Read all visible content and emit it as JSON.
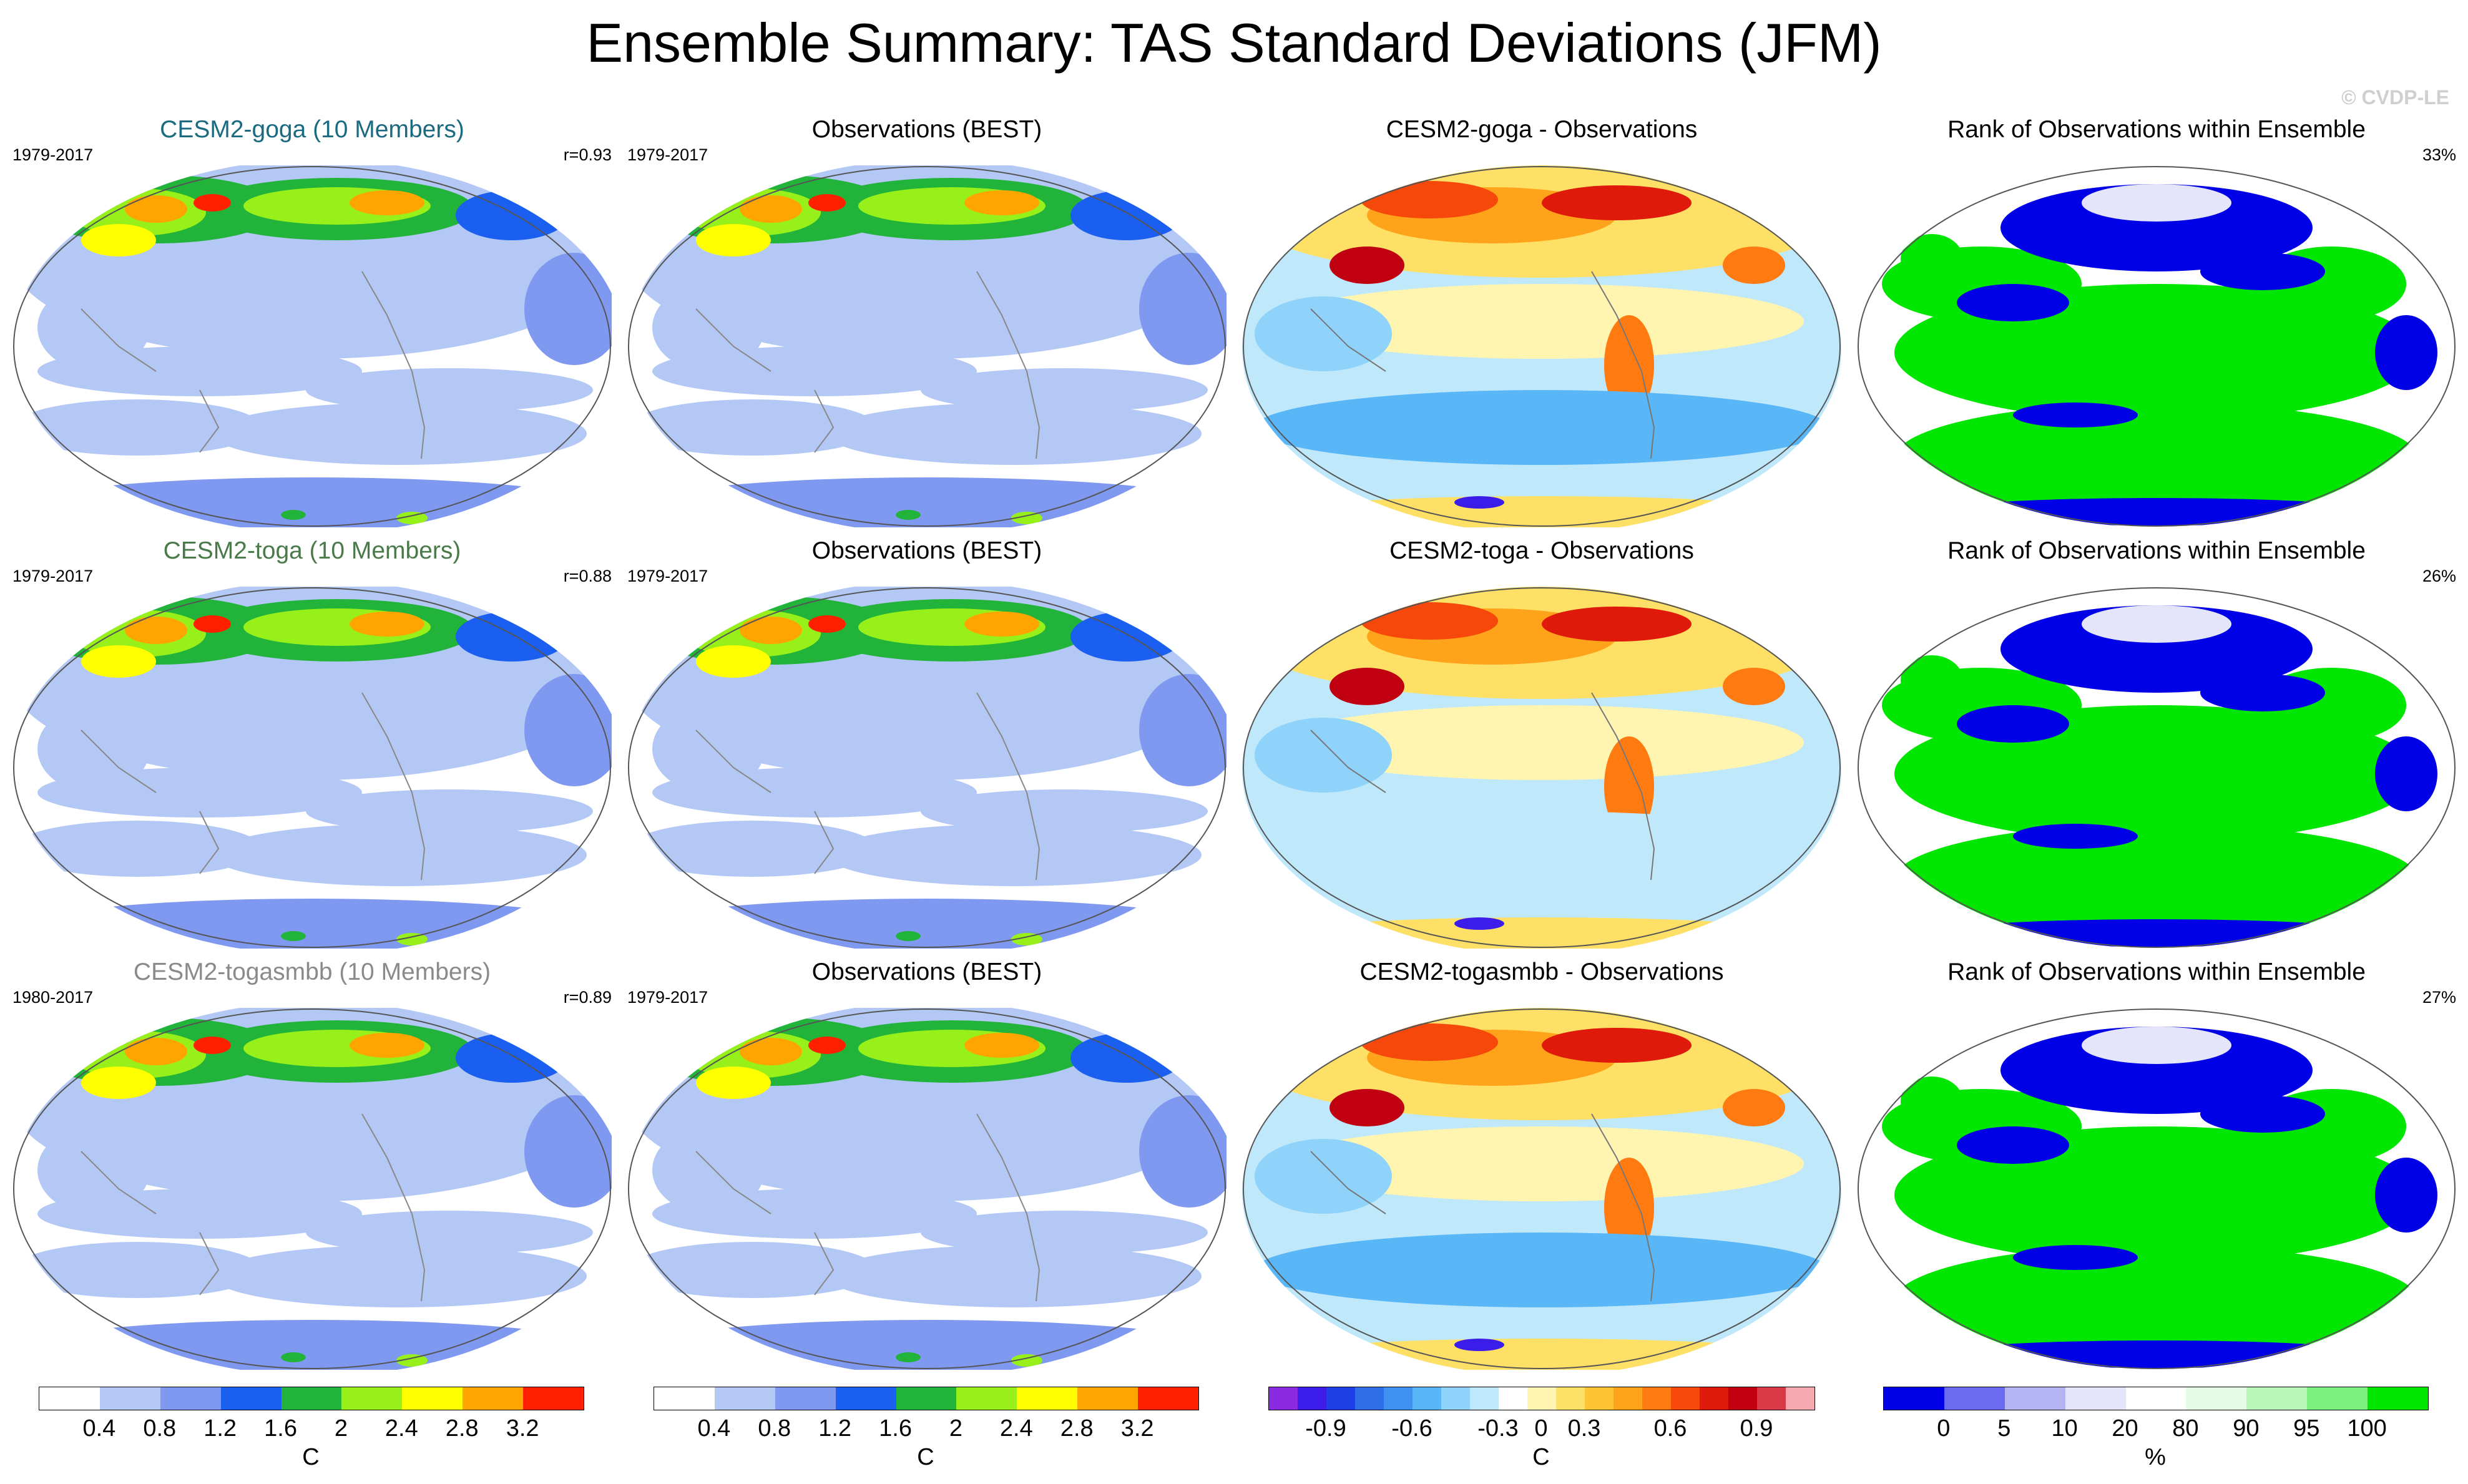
{
  "title": "Ensemble Summary: TAS Standard Deviations (JFM)",
  "watermark": "© CVDP-LE",
  "rows": [
    {
      "model": {
        "title": "CESM2-goga (10 Members)",
        "title_color": "#1a6a82",
        "years": "1979-2017",
        "stat": "r=0.93"
      },
      "obs": {
        "title": "Observations (BEST)",
        "years": "1979-2017"
      },
      "diff": {
        "title": "CESM2-goga - Observations"
      },
      "rank": {
        "title": "Rank of Observations within Ensemble",
        "pct": "33%"
      }
    },
    {
      "model": {
        "title": "CESM2-toga (10 Members)",
        "title_color": "#4a7a4a",
        "years": "1979-2017",
        "stat": "r=0.88"
      },
      "obs": {
        "title": "Observations (BEST)",
        "years": "1979-2017"
      },
      "diff": {
        "title": "CESM2-toga - Observations"
      },
      "rank": {
        "title": "Rank of Observations within Ensemble",
        "pct": "26%"
      }
    },
    {
      "model": {
        "title": "CESM2-togasmbb (10 Members)",
        "title_color": "#8a8a8a",
        "years": "1980-2017",
        "stat": "r=0.89"
      },
      "obs": {
        "title": "Observations (BEST)",
        "years": "1979-2017"
      },
      "diff": {
        "title": "CESM2-togasmbb - Observations"
      },
      "rank": {
        "title": "Rank of Observations within Ensemble",
        "pct": "27%"
      }
    }
  ],
  "colorbars": {
    "std": {
      "colors": [
        "#ffffff",
        "#b4c8f5",
        "#7f98f0",
        "#1a5ff0",
        "#22b33a",
        "#98f01a",
        "#ffff00",
        "#ffa500",
        "#ff2000"
      ],
      "labels": [
        "0.4",
        "0.8",
        "1.2",
        "1.6",
        "2",
        "2.4",
        "2.8",
        "3.2"
      ],
      "unit": "C"
    },
    "diff": {
      "colors": [
        "#8a2be2",
        "#3b1ce8",
        "#1e3fe6",
        "#2e6ee6",
        "#3f92ef",
        "#59b6f7",
        "#8fd3fb",
        "#c0e8fb",
        "#ffffff",
        "#fff5b0",
        "#ffe066",
        "#ffc433",
        "#ffa31a",
        "#ff7a10",
        "#f5480a",
        "#e01a0a",
        "#c00010",
        "#d93a48",
        "#f4aab0"
      ],
      "labels": [
        "-0.9",
        "-0.6",
        "-0.3",
        "0",
        "0.3",
        "0.6",
        "0.9"
      ],
      "unit": "C"
    },
    "rank": {
      "colors": [
        "#0000e6",
        "#6b6bf0",
        "#b4b4f3",
        "#e4e4fa",
        "#ffffff",
        "#e4fbe4",
        "#b8f5b8",
        "#7cf07c",
        "#00e600"
      ],
      "labels": [
        "0",
        "5",
        "10",
        "20",
        "80",
        "90",
        "95",
        "100"
      ],
      "unit": "%"
    }
  }
}
